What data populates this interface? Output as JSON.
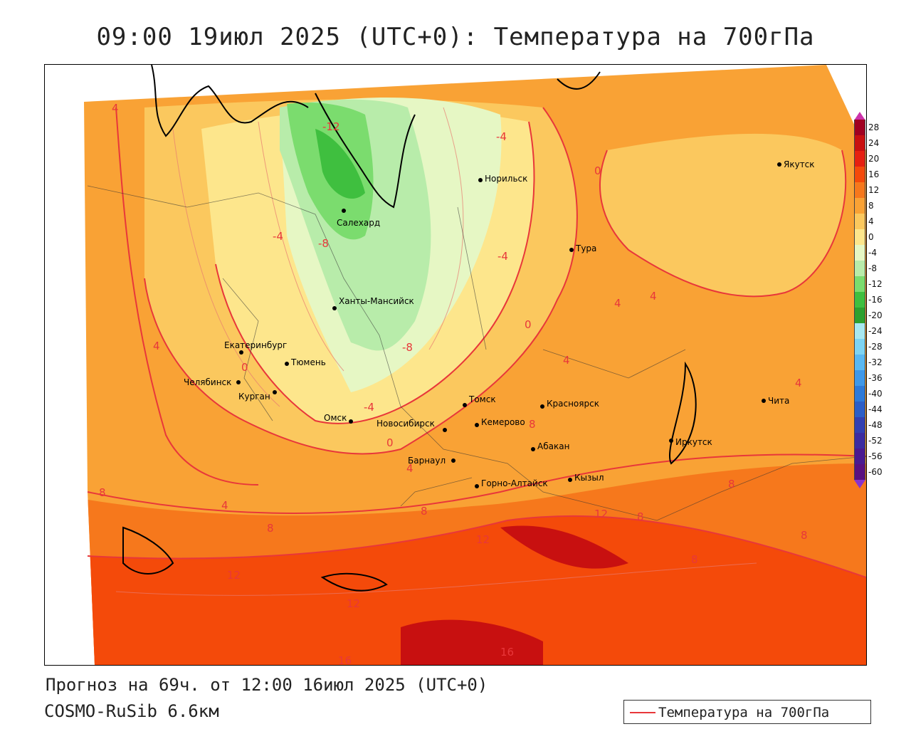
{
  "title": "09:00 19июл 2025 (UTC+0): Температура на 700гПа",
  "forecast_line": "Прогноз на 69ч. от 12:00 16июл 2025 (UTC+0)",
  "model_line": "COSMO-RuSib 6.6км",
  "series_legend": {
    "label": "Температура на 700гПа",
    "color": "#e8373a"
  },
  "colorbar": {
    "labels": [
      "28",
      "24",
      "20",
      "16",
      "12",
      "8",
      "4",
      "0",
      "-4",
      "-8",
      "-12",
      "-16",
      "-20",
      "-24",
      "-28",
      "-32",
      "-36",
      "-40",
      "-44",
      "-48",
      "-52",
      "-56",
      "-60"
    ],
    "colors": [
      "#a00020",
      "#c81010",
      "#e62010",
      "#f44a0a",
      "#f6781c",
      "#f9a235",
      "#fbc85e",
      "#fde68c",
      "#e6f7c4",
      "#b8ecaa",
      "#7bdc6e",
      "#3fbf3f",
      "#2ea02e",
      "#a8e8f0",
      "#7ed4f2",
      "#5ab8f0",
      "#3f98e8",
      "#2e7ad8",
      "#2c5ec6",
      "#3340b0",
      "#3c2ca0",
      "#4a1a90",
      "#5a1080"
    ]
  },
  "cities": [
    {
      "name": "Якутск"
    },
    {
      "name": "Норильск"
    },
    {
      "name": "Салехард"
    },
    {
      "name": "Тура"
    },
    {
      "name": "Ханты-Мансийск"
    },
    {
      "name": "Екатеринбург"
    },
    {
      "name": "Тюмень"
    },
    {
      "name": "Челябинск"
    },
    {
      "name": "Курган"
    },
    {
      "name": "Томск"
    },
    {
      "name": "Омск"
    },
    {
      "name": "Новосибирск"
    },
    {
      "name": "Кемерово"
    },
    {
      "name": "Красноярск"
    },
    {
      "name": "Абакан"
    },
    {
      "name": "Барнаул"
    },
    {
      "name": "Горно-Алтайск"
    },
    {
      "name": "Кызыл"
    },
    {
      "name": "Иркутск"
    },
    {
      "name": "Чита"
    }
  ],
  "isotherm_labels": [
    "4",
    "-12",
    "-4",
    "0",
    "-4",
    "-8",
    "-4",
    "4",
    "-8",
    "0",
    "4",
    "0",
    "4",
    "4",
    "-4",
    "0",
    "4",
    "8",
    "8",
    "4",
    "8",
    "12",
    "12",
    "8",
    "8",
    "12",
    "12",
    "16",
    "16",
    "4",
    "8",
    "8",
    "8"
  ]
}
